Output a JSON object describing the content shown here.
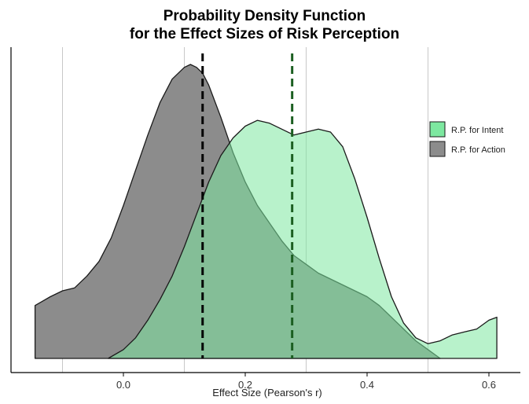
{
  "chart_data": {
    "type": "area",
    "title": "Probability Density Function",
    "subtitle": "for the Effect Sizes of Risk Perception",
    "xlabel": "Effect Size (Pearson's r)",
    "ylabel": "",
    "xlim": [
      -0.16,
      0.64
    ],
    "ylim": [
      0,
      1.0
    ],
    "x_ticks": [
      "0.0",
      "0.2",
      "0.4",
      "0.6"
    ],
    "x_tick_values": [
      0.0,
      0.2,
      0.4,
      0.6
    ],
    "grid": "vertical",
    "grid_values": [
      -0.1,
      0.1,
      0.3,
      0.5
    ],
    "legend_position": "right",
    "series": [
      {
        "name": "R.P. for Action",
        "color": "#8c8c8c",
        "mean_line": 0.13,
        "mean_line_color": "#000000",
        "x": [
          -0.145,
          -0.12,
          -0.1,
          -0.08,
          -0.06,
          -0.04,
          -0.02,
          0.0,
          0.02,
          0.04,
          0.06,
          0.08,
          0.1,
          0.11,
          0.12,
          0.13,
          0.14,
          0.16,
          0.18,
          0.2,
          0.22,
          0.24,
          0.26,
          0.28,
          0.3,
          0.32,
          0.34,
          0.36,
          0.38,
          0.4,
          0.42,
          0.44,
          0.46,
          0.48,
          0.5,
          0.52
        ],
        "y": [
          0.18,
          0.21,
          0.23,
          0.24,
          0.28,
          0.33,
          0.41,
          0.52,
          0.64,
          0.76,
          0.87,
          0.95,
          0.99,
          1.0,
          0.99,
          0.97,
          0.93,
          0.82,
          0.7,
          0.6,
          0.52,
          0.46,
          0.4,
          0.35,
          0.32,
          0.29,
          0.27,
          0.25,
          0.23,
          0.21,
          0.18,
          0.14,
          0.1,
          0.06,
          0.03,
          0.0
        ]
      },
      {
        "name": "R.P. for Intent",
        "color": "#7de8a0",
        "mean_line": 0.277,
        "mean_line_color": "#1b5e20",
        "x": [
          -0.025,
          0.0,
          0.02,
          0.04,
          0.06,
          0.08,
          0.1,
          0.12,
          0.14,
          0.16,
          0.18,
          0.2,
          0.22,
          0.24,
          0.26,
          0.28,
          0.3,
          0.32,
          0.34,
          0.36,
          0.38,
          0.4,
          0.42,
          0.44,
          0.46,
          0.48,
          0.5,
          0.52,
          0.54,
          0.56,
          0.58,
          0.6,
          0.613
        ],
        "y": [
          0.0,
          0.03,
          0.07,
          0.13,
          0.2,
          0.28,
          0.38,
          0.49,
          0.6,
          0.69,
          0.75,
          0.79,
          0.81,
          0.8,
          0.78,
          0.76,
          0.77,
          0.78,
          0.77,
          0.72,
          0.61,
          0.48,
          0.34,
          0.21,
          0.12,
          0.07,
          0.05,
          0.06,
          0.08,
          0.09,
          0.1,
          0.13,
          0.14
        ]
      }
    ]
  }
}
